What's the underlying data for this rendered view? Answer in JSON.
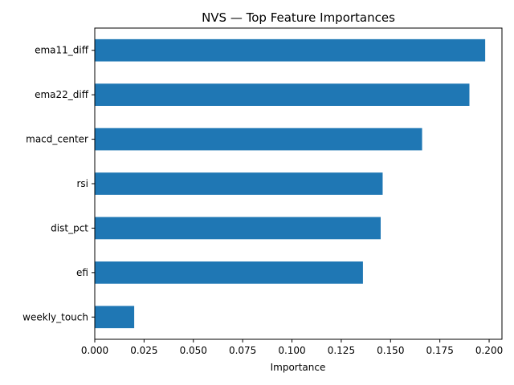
{
  "chart_data": {
    "type": "bar",
    "orientation": "horizontal",
    "title": "NVS — Top Feature Importances",
    "xlabel": "Importance",
    "ylabel": "",
    "categories": [
      "ema11_diff",
      "ema22_diff",
      "macd_center",
      "rsi",
      "dist_pct",
      "efi",
      "weekly_touch"
    ],
    "values": [
      0.198,
      0.19,
      0.166,
      0.146,
      0.145,
      0.136,
      0.02
    ],
    "xlim": [
      0.0,
      0.2065
    ],
    "xticks": [
      "0.000",
      "0.025",
      "0.050",
      "0.075",
      "0.100",
      "0.125",
      "0.150",
      "0.175",
      "0.200"
    ],
    "bar_color": "#1f77b4",
    "grid": false,
    "legend": false
  }
}
